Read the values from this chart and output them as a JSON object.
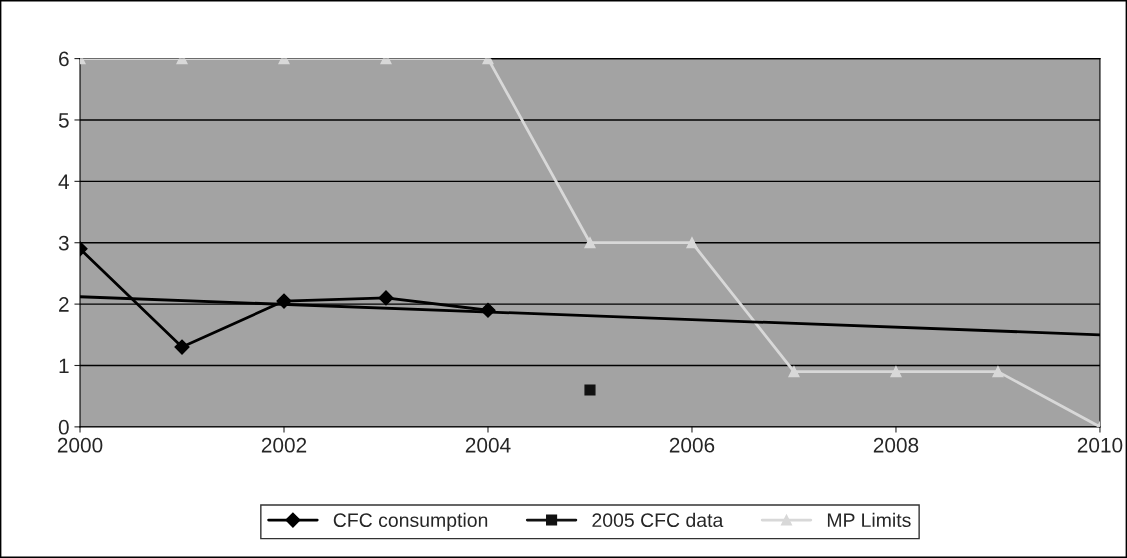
{
  "chart_data": {
    "type": "line",
    "x": [
      2000,
      2001,
      2002,
      2003,
      2004,
      2005,
      2006,
      2007,
      2008,
      2009,
      2010
    ],
    "series": [
      {
        "name": "CFC consumption",
        "color": "#000000",
        "marker": "diamond",
        "x": [
          2000,
          2001,
          2002,
          2003,
          2004
        ],
        "values": [
          2.9,
          1.3,
          2.05,
          2.1,
          1.9
        ]
      },
      {
        "name": "2005 CFC data",
        "color": "#111111",
        "marker": "square",
        "x": [
          2005
        ],
        "values": [
          0.6
        ]
      },
      {
        "name": "MP Limits",
        "color": "#d8d8d8",
        "marker": "triangle",
        "values": [
          6,
          6,
          6,
          6,
          6,
          3,
          3,
          0.9,
          0.9,
          0.9,
          0
        ]
      },
      {
        "color": "#000000",
        "marker": "none",
        "x": [
          2000,
          2010
        ],
        "values": [
          2.12,
          1.5
        ]
      }
    ],
    "xlim": [
      2000,
      2010
    ],
    "xticks": [
      2000,
      2002,
      2004,
      2006,
      2008,
      2010
    ],
    "ylim": [
      0,
      6
    ],
    "yticks": [
      0,
      1,
      2,
      3,
      4,
      5,
      6
    ],
    "grid": "y",
    "legend": "bottom"
  }
}
